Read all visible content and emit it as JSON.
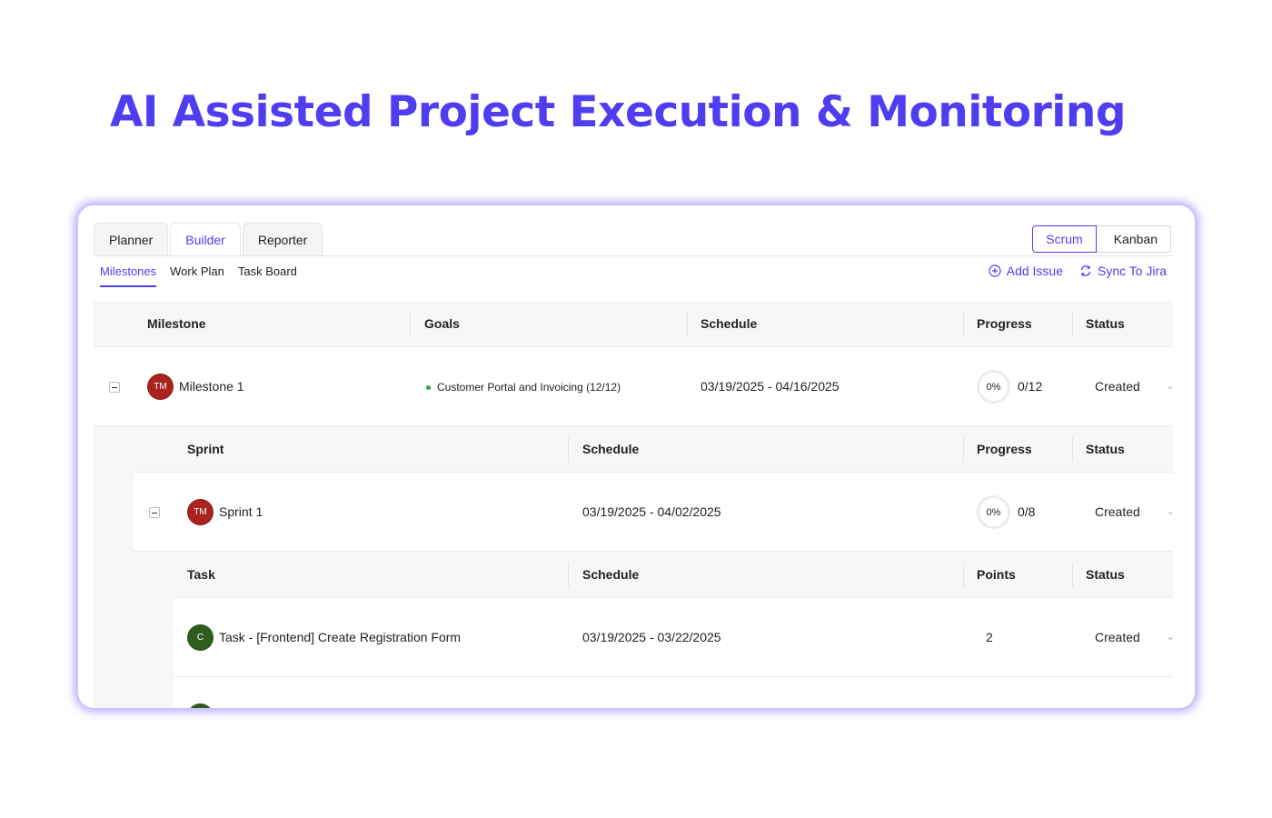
{
  "hero": {
    "title": "AI Assisted Project Execution & Monitoring"
  },
  "tabs": [
    {
      "label": "Planner"
    },
    {
      "label": "Builder"
    },
    {
      "label": "Reporter"
    }
  ],
  "mode_toggle": {
    "options": [
      "Scrum",
      "Kanban"
    ],
    "active": "Scrum"
  },
  "subtabs": [
    {
      "label": "Milestones"
    },
    {
      "label": "Work Plan"
    },
    {
      "label": "Task Board"
    }
  ],
  "actions": {
    "add_issue": "Add Issue",
    "sync_jira": "Sync To Jira"
  },
  "milestone_header": {
    "milestone": "Milestone",
    "goals": "Goals",
    "schedule": "Schedule",
    "progress": "Progress",
    "status": "Status"
  },
  "milestone_row": {
    "avatar": "TM",
    "name": "Milestone 1",
    "goal": "Customer Portal and Invoicing (12/12)",
    "schedule": "03/19/2025 - 04/16/2025",
    "progress_pct": "0%",
    "progress_count": "0/12",
    "status": "Created"
  },
  "sprint_header": {
    "sprint": "Sprint",
    "schedule": "Schedule",
    "progress": "Progress",
    "status": "Status"
  },
  "sprint_row": {
    "avatar": "TM",
    "name": "Sprint 1",
    "schedule": "03/19/2025 - 04/02/2025",
    "progress_pct": "0%",
    "progress_count": "0/8",
    "status": "Created"
  },
  "task_header": {
    "task": "Task",
    "schedule": "Schedule",
    "points": "Points",
    "status": "Status"
  },
  "task_row": {
    "avatar": "C",
    "name": "Task - [Frontend] Create Registration Form",
    "schedule": "03/19/2025 - 03/22/2025",
    "points": "2",
    "status": "Created"
  },
  "colors": {
    "accent": "#4f3df0",
    "avatar_red": "#a8241c",
    "avatar_green": "#2f5d1f",
    "goal_dot": "#2fae2f"
  },
  "icons": {
    "add": "plus-circle-icon",
    "sync": "sync-icon",
    "chevron": "chevron-down-icon",
    "collapse": "minus-box-icon"
  }
}
